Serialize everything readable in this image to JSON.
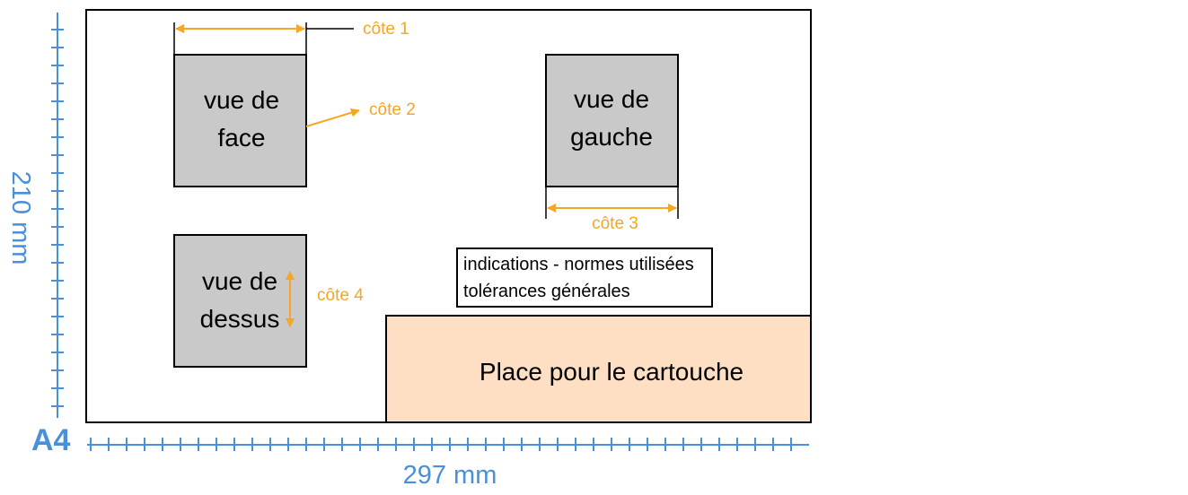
{
  "sheet": {
    "format_label": "A4",
    "width_label": "297 mm",
    "height_label": "210 mm"
  },
  "views": {
    "front": {
      "line1": "vue de",
      "line2": "face"
    },
    "left": {
      "line1": "vue de",
      "line2": "gauche"
    },
    "top": {
      "line1": "vue de",
      "line2": "dessus"
    }
  },
  "dimensions": {
    "cote1": "côte 1",
    "cote2": "côte 2",
    "cote3": "côte 3",
    "cote4": "côte 4"
  },
  "notes": {
    "line1": "indications - normes utilisées",
    "line2": "tolérances générales"
  },
  "title_block": {
    "label": "Place pour le cartouche"
  },
  "colors": {
    "ruler": "#4A90D9",
    "dimension": "#F5A623",
    "view_fill": "#C9C9C9",
    "title_block_fill": "#FFDFC4"
  }
}
